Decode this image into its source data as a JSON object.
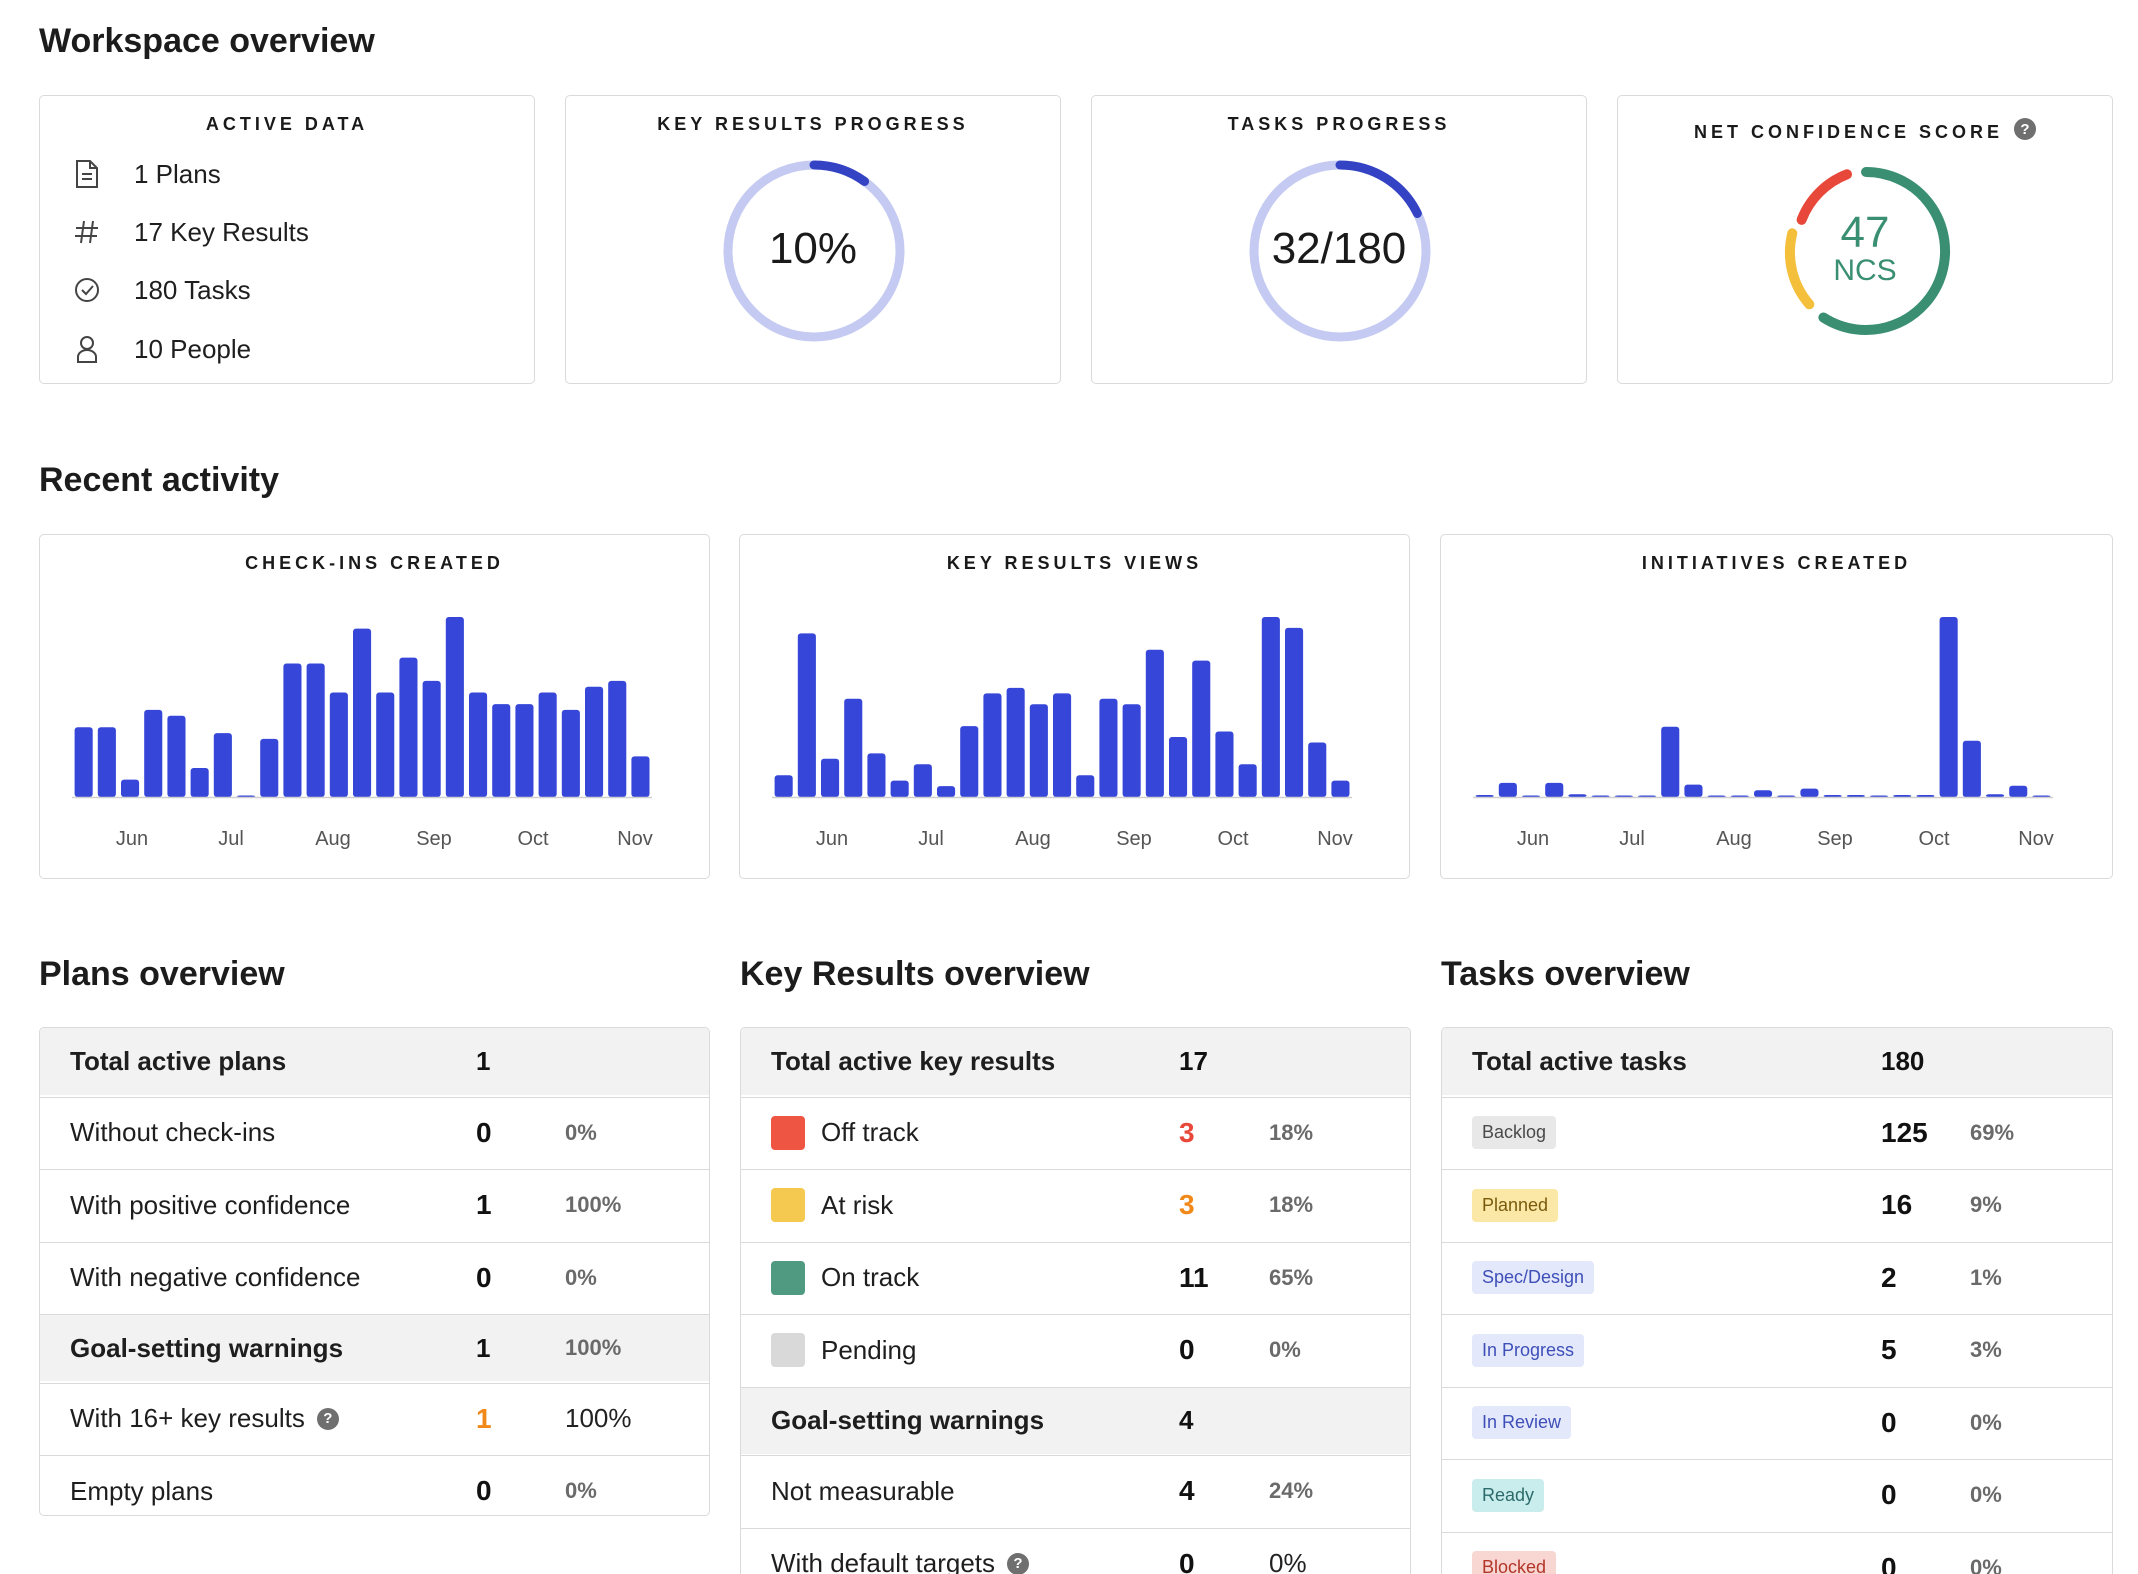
{
  "workspace": {
    "title": "Workspace overview",
    "active_data": {
      "title": "ACTIVE DATA",
      "items": [
        {
          "icon": "document-icon",
          "label": "1 Plans"
        },
        {
          "icon": "hash-icon",
          "label": "17 Key Results"
        },
        {
          "icon": "check-circle-icon",
          "label": "180 Tasks"
        },
        {
          "icon": "person-icon",
          "label": "10 People"
        }
      ]
    },
    "kr_progress": {
      "title": "KEY RESULTS PROGRESS",
      "value_label": "10%",
      "fraction": 0.1
    },
    "tasks_progress": {
      "title": "TASKS PROGRESS",
      "value_label": "32/180",
      "fraction": 0.178
    },
    "ncs": {
      "title": "NET CONFIDENCE SCORE",
      "help": "?",
      "score": "47",
      "unit": "NCS",
      "colors": {
        "red": "#e8483a",
        "yellow": "#f4bf3a",
        "green": "#3a8f73"
      }
    }
  },
  "activity": {
    "title": "Recent activity",
    "months": [
      "Jun",
      "Jul",
      "Aug",
      "Sep",
      "Oct",
      "Nov"
    ],
    "accent": "#3646d9",
    "charts": [
      {
        "title": "CHECK-INS CREATED"
      },
      {
        "title": "KEY RESULTS VIEWS"
      },
      {
        "title": "INITIATIVES CREATED"
      }
    ]
  },
  "chart_data": [
    {
      "type": "bar",
      "title": "CHECK-INS CREATED",
      "x_ticks": [
        "Jun",
        "Jul",
        "Aug",
        "Sep",
        "Oct",
        "Nov"
      ],
      "values": [
        12,
        12,
        3,
        15,
        14,
        5,
        11,
        0,
        10,
        23,
        23,
        18,
        29,
        18,
        24,
        20,
        31,
        18,
        16,
        16,
        18,
        15,
        19,
        20,
        7
      ],
      "ylim": [
        0,
        31
      ]
    },
    {
      "type": "bar",
      "title": "KEY RESULTS VIEWS",
      "x_ticks": [
        "Jun",
        "Jul",
        "Aug",
        "Sep",
        "Oct",
        "Nov"
      ],
      "values": [
        4,
        30,
        7,
        18,
        8,
        3,
        6,
        2,
        13,
        19,
        20,
        17,
        19,
        4,
        18,
        17,
        27,
        11,
        25,
        12,
        6,
        33,
        31,
        10,
        3
      ],
      "ylim": [
        0,
        33
      ]
    },
    {
      "type": "bar",
      "title": "INITIATIVES CREATED",
      "x_ticks": [
        "Jun",
        "Jul",
        "Aug",
        "Sep",
        "Oct",
        "Nov"
      ],
      "values": [
        0.3,
        2.5,
        0,
        2.5,
        0.5,
        0,
        0,
        0,
        12.5,
        2.2,
        0,
        0,
        1.2,
        0,
        1.5,
        0.3,
        0.3,
        0,
        0.3,
        0.3,
        32,
        10,
        0.5,
        2,
        0
      ],
      "ylim": [
        0,
        32
      ]
    }
  ],
  "plans": {
    "title": "Plans overview",
    "rows": [
      {
        "label": "Total active plans",
        "num": "1",
        "pct": "",
        "hdr": true
      },
      {
        "label": "Without check-ins",
        "num": "0",
        "pct": "0%"
      },
      {
        "label": "With positive confidence",
        "num": "1",
        "pct": "100%"
      },
      {
        "label": "With negative confidence",
        "num": "0",
        "pct": "0%"
      },
      {
        "label": "Goal-setting warnings",
        "num": "1",
        "pct": "100%",
        "hdr": true
      },
      {
        "label": "With 16+ key results",
        "num": "1",
        "pct": "100%",
        "help": "?",
        "num_color": "#f0891a",
        "pct_dark": true
      },
      {
        "label": "Empty plans",
        "num": "0",
        "pct": "0%"
      }
    ]
  },
  "key_results": {
    "title": "Key Results overview",
    "rows": [
      {
        "label": "Total active key results",
        "num": "17",
        "pct": "",
        "hdr": true
      },
      {
        "label": "Off track",
        "num": "3",
        "pct": "18%",
        "swatch": "#ef5543",
        "num_color": "#e8483a"
      },
      {
        "label": "At risk",
        "num": "3",
        "pct": "18%",
        "swatch": "#f5c94f",
        "num_color": "#f0891a"
      },
      {
        "label": "On track",
        "num": "11",
        "pct": "65%",
        "swatch": "#4f9a80"
      },
      {
        "label": "Pending",
        "num": "0",
        "pct": "0%",
        "swatch": "#d9d9d9"
      },
      {
        "label": "Goal-setting warnings",
        "num": "4",
        "pct": "",
        "hdr": true
      },
      {
        "label": "Not measurable",
        "num": "4",
        "pct": "24%"
      },
      {
        "label": "With default targets",
        "num": "0",
        "pct": "0%",
        "help": "?",
        "pct_dark": true
      }
    ]
  },
  "tasks": {
    "title": "Tasks overview",
    "rows": [
      {
        "label": "Total active tasks",
        "num": "180",
        "pct": "",
        "hdr": true
      },
      {
        "label": "Backlog",
        "num": "125",
        "pct": "69%",
        "badge_bg": "#e8e8e8",
        "badge_fg": "#4a4a4a"
      },
      {
        "label": "Planned",
        "num": "16",
        "pct": "9%",
        "badge_bg": "#fbe7a6",
        "badge_fg": "#7a5b0c"
      },
      {
        "label": "Spec/Design",
        "num": "2",
        "pct": "1%",
        "badge_bg": "#e4e8fb",
        "badge_fg": "#3e4fb8"
      },
      {
        "label": "In Progress",
        "num": "5",
        "pct": "3%",
        "badge_bg": "#e4e8fb",
        "badge_fg": "#3e4fb8"
      },
      {
        "label": "In Review",
        "num": "0",
        "pct": "0%",
        "badge_bg": "#e4e8fb",
        "badge_fg": "#3e4fb8"
      },
      {
        "label": "Ready",
        "num": "0",
        "pct": "0%",
        "badge_bg": "#c9ecec",
        "badge_fg": "#2d6b6b"
      },
      {
        "label": "Blocked",
        "num": "0",
        "pct": "0%",
        "badge_bg": "#f8d6d2",
        "badge_fg": "#b2362a"
      }
    ]
  }
}
